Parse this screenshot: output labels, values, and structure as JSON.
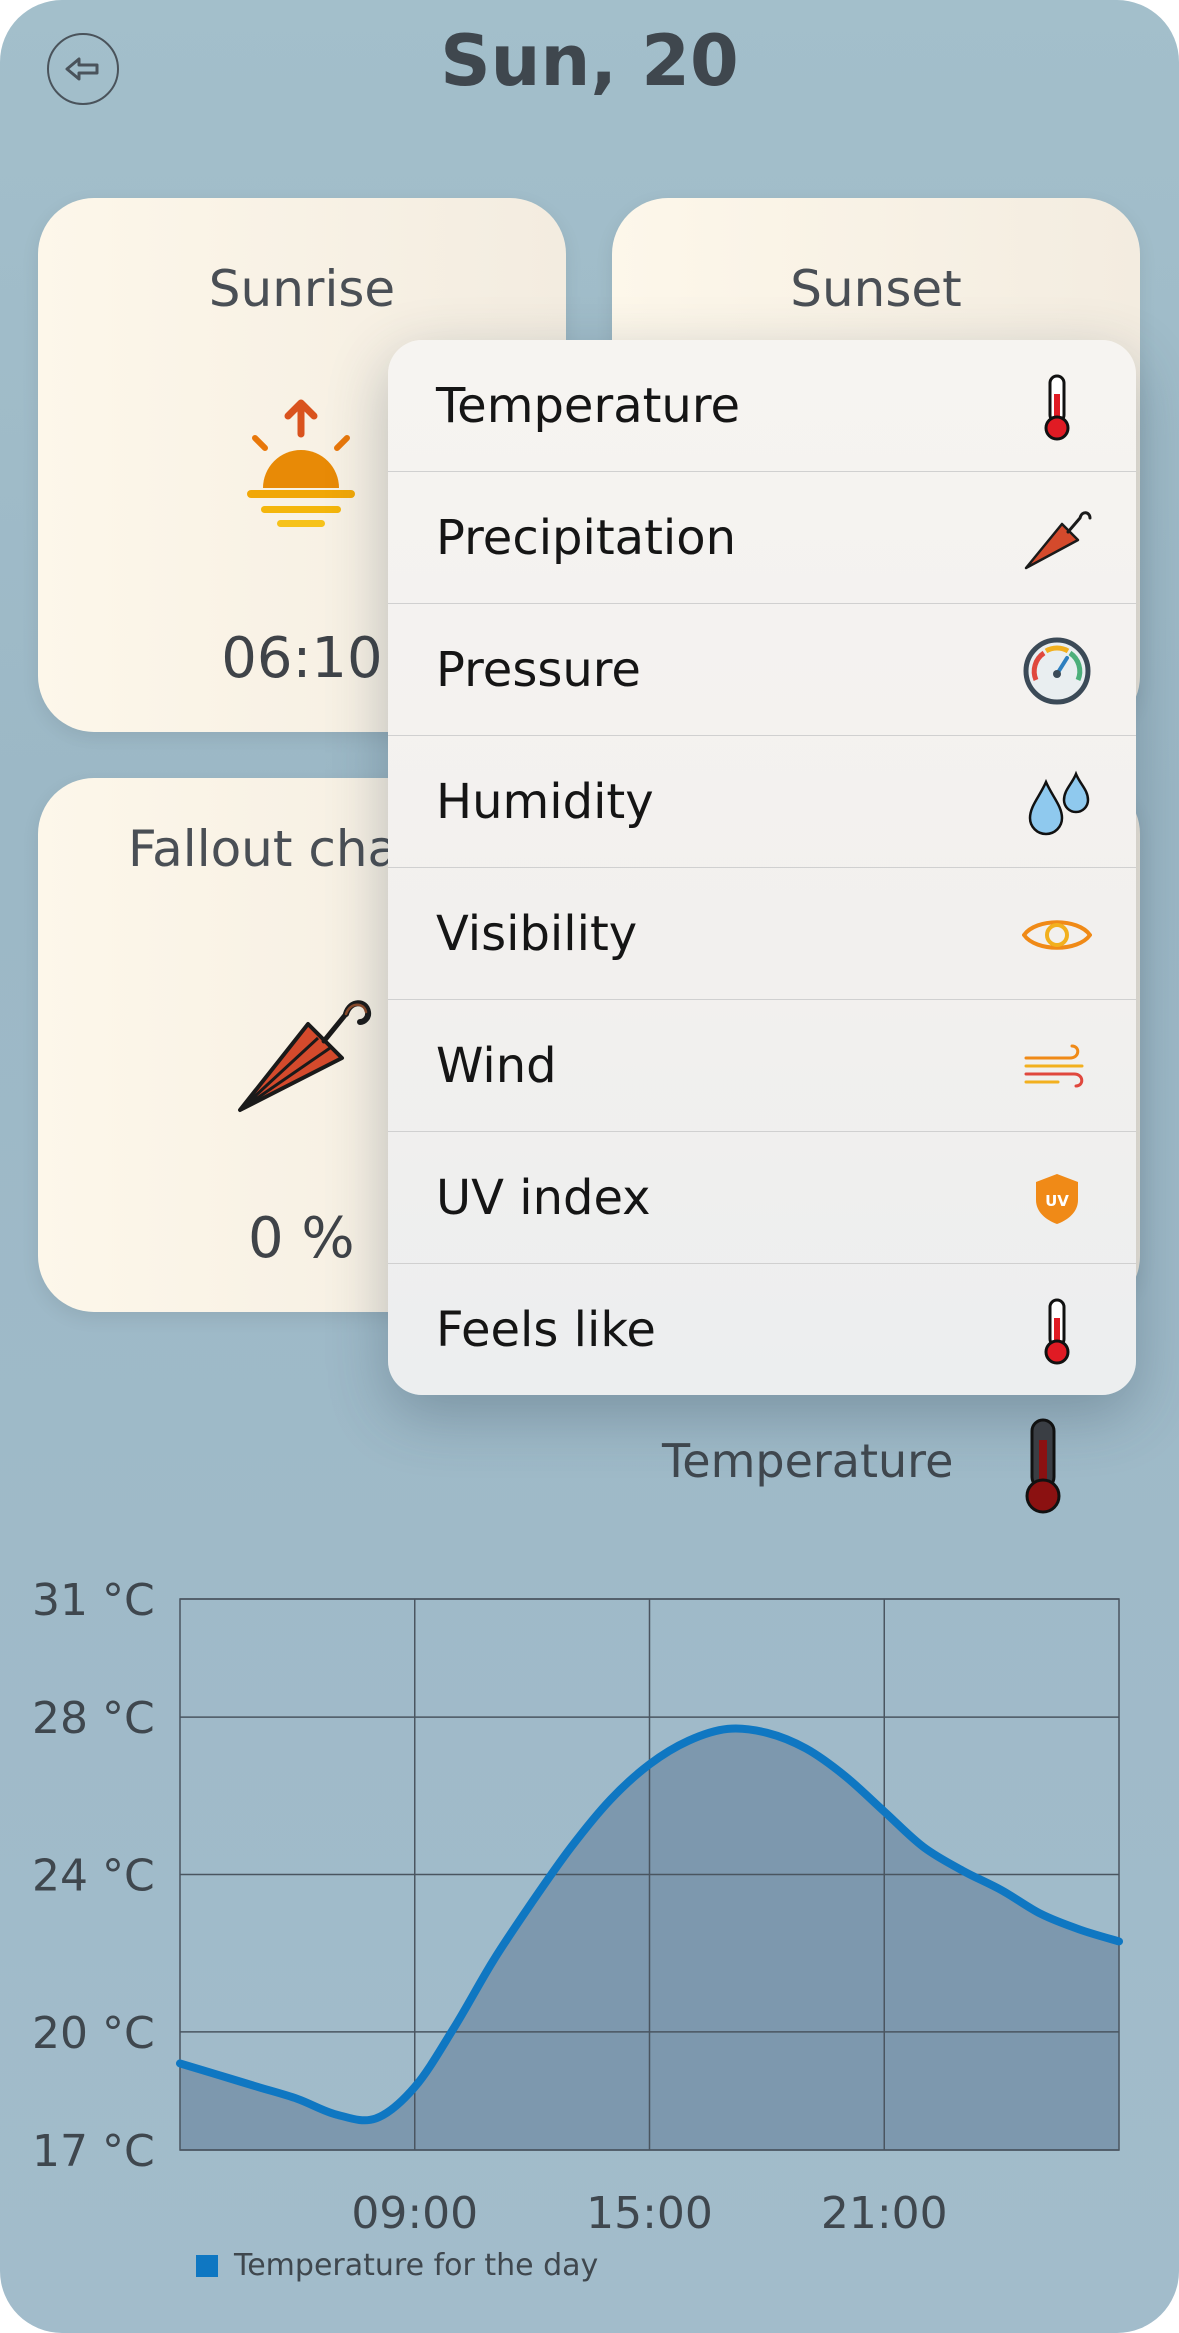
{
  "header": {
    "title": "Sun, 20",
    "back_icon": "arrow-left-circle-icon"
  },
  "cards": {
    "sunrise": {
      "label": "Sunrise",
      "value": "06:10",
      "icon": "sunrise-icon"
    },
    "sunset": {
      "label": "Sunset",
      "icon": "sunset-icon"
    },
    "fallout": {
      "label": "Fallout cha",
      "value": "0 %",
      "icon": "umbrella-icon"
    }
  },
  "menu": {
    "items": [
      {
        "label": "Temperature",
        "icon": "thermometer-icon"
      },
      {
        "label": "Precipitation",
        "icon": "umbrella-icon"
      },
      {
        "label": "Pressure",
        "icon": "gauge-icon"
      },
      {
        "label": "Humidity",
        "icon": "water-drops-icon"
      },
      {
        "label": "Visibility",
        "icon": "eye-icon"
      },
      {
        "label": "Wind",
        "icon": "wind-icon"
      },
      {
        "label": "UV index",
        "icon": "uv-shield-icon"
      },
      {
        "label": "Feels like",
        "icon": "thermometer-icon"
      }
    ]
  },
  "chart_header": {
    "label": "Temperature",
    "icon": "thermometer-dark-icon"
  },
  "chart_data": {
    "type": "area",
    "title": "",
    "ylim": [
      17,
      31
    ],
    "xlim": [
      3,
      27
    ],
    "y_ticks": [
      {
        "value": 17,
        "label": "17 °C"
      },
      {
        "value": 20,
        "label": "20 °C"
      },
      {
        "value": 24,
        "label": "24 °C"
      },
      {
        "value": 28,
        "label": "28 °C"
      },
      {
        "value": 31,
        "label": "31 °C"
      }
    ],
    "x_ticks": [
      {
        "value": 9,
        "label": "09:00"
      },
      {
        "value": 15,
        "label": "15:00"
      },
      {
        "value": 21,
        "label": "21:00"
      }
    ],
    "grid": true,
    "legend": "bottom-left",
    "series": [
      {
        "name": "Temperature for the day",
        "color": "#0f77c2",
        "fill": "#7d98ae",
        "x": [
          3,
          4,
          5,
          6,
          7,
          8,
          9,
          10,
          11,
          12,
          13,
          14,
          15,
          16,
          17,
          18,
          19,
          20,
          21,
          22,
          23,
          24,
          25,
          26,
          27
        ],
        "y": [
          19.2,
          18.9,
          18.6,
          18.3,
          17.9,
          17.8,
          18.6,
          20.1,
          21.8,
          23.3,
          24.7,
          25.9,
          26.8,
          27.4,
          27.7,
          27.6,
          27.2,
          26.5,
          25.6,
          24.7,
          24.1,
          23.6,
          23.0,
          22.6,
          22.3
        ]
      }
    ]
  }
}
